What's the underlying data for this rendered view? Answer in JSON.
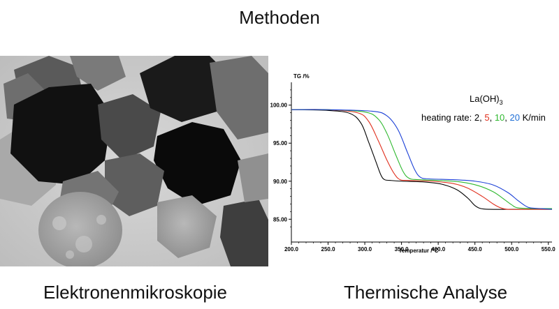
{
  "header": {
    "title": "Methoden"
  },
  "panels": {
    "left_caption": "Elektronenmikroskopie",
    "right_caption": "Thermische Analyse"
  },
  "chart_data": {
    "type": "line",
    "title": "",
    "xlabel": "Temperatur /°C",
    "ylabel": "TG /%",
    "xlim": [
      200,
      555
    ],
    "ylim": [
      82,
      103
    ],
    "x_ticks": [
      "200.0",
      "250.0",
      "300.0",
      "350.0",
      "400.0",
      "450.0",
      "500.0",
      "550.0"
    ],
    "y_ticks": [
      "100.00",
      "95.00",
      "90.00",
      "85.00"
    ],
    "legend": {
      "compound_base": "La(OH)",
      "compound_sub": "3",
      "prefix": "heating rate: 2, ",
      "rates": [
        "5",
        "10",
        "20"
      ],
      "sep": ", ",
      "suffix": " K/min"
    },
    "grid": false,
    "series": [
      {
        "rate": "2",
        "color": "#000000",
        "x": [
          200,
          250,
          280,
          295,
          305,
          315,
          322,
          327,
          335,
          350,
          380,
          405,
          425,
          440,
          450,
          458,
          470,
          500,
          555
        ],
        "y": [
          99.4,
          99.3,
          98.9,
          97.6,
          95.2,
          92.6,
          90.8,
          90.2,
          90.1,
          90.0,
          89.9,
          89.6,
          88.9,
          87.8,
          86.8,
          86.4,
          86.3,
          86.3,
          86.3
        ]
      },
      {
        "rate": "5",
        "color": "#e0301e",
        "x": [
          200,
          250,
          290,
          305,
          318,
          330,
          340,
          348,
          360,
          390,
          420,
          440,
          460,
          475,
          485,
          495,
          520,
          555
        ],
        "y": [
          99.4,
          99.4,
          99.0,
          97.9,
          95.4,
          92.8,
          91.0,
          90.2,
          90.1,
          90.0,
          89.7,
          89.1,
          88.0,
          87.0,
          86.5,
          86.3,
          86.3,
          86.3
        ]
      },
      {
        "rate": "10",
        "color": "#2eb82e",
        "x": [
          200,
          250,
          300,
          318,
          330,
          342,
          352,
          360,
          372,
          400,
          430,
          455,
          475,
          490,
          500,
          508,
          530,
          555
        ],
        "y": [
          99.4,
          99.4,
          99.1,
          98.2,
          96.3,
          93.5,
          91.3,
          90.4,
          90.2,
          90.1,
          89.9,
          89.4,
          88.6,
          87.6,
          86.9,
          86.5,
          86.4,
          86.4
        ]
      },
      {
        "rate": "20",
        "color": "#1a3fd6",
        "x": [
          200,
          250,
          310,
          330,
          345,
          358,
          368,
          376,
          388,
          420,
          450,
          475,
          495,
          508,
          518,
          525,
          540,
          555
        ],
        "y": [
          99.4,
          99.4,
          99.2,
          98.6,
          96.8,
          93.8,
          91.5,
          90.5,
          90.3,
          90.2,
          90.0,
          89.5,
          88.5,
          87.5,
          86.8,
          86.5,
          86.4,
          86.3
        ]
      }
    ]
  }
}
